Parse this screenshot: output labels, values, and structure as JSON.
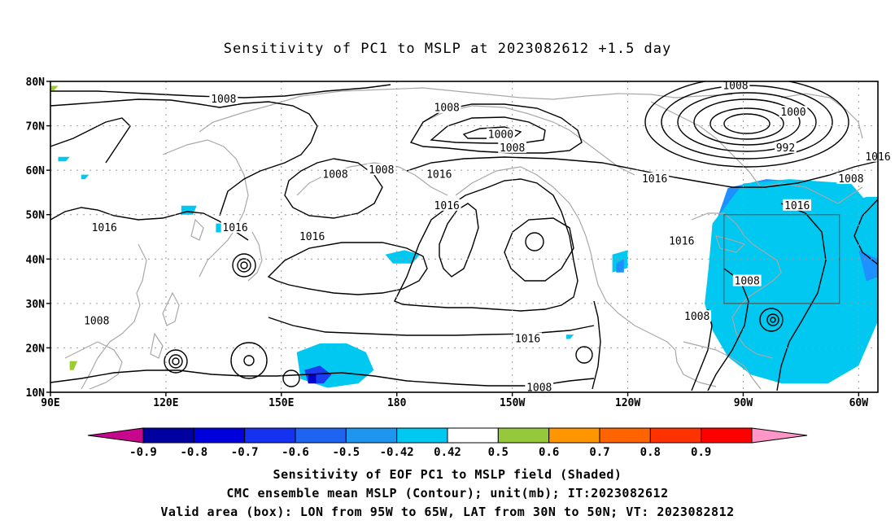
{
  "title": "Sensitivity of PC1 to MSLP at 2023082612 +1.5 day",
  "map": {
    "lat_labels": [
      "80N",
      "70N",
      "60N",
      "50N",
      "40N",
      "30N",
      "20N",
      "10N"
    ],
    "lon_labels": [
      "90E",
      "120E",
      "150E",
      "180",
      "150W",
      "120W",
      "90W",
      "60W"
    ],
    "lat_range": [
      10,
      80
    ],
    "lon_range_east": [
      90,
      305
    ],
    "valid_box": {
      "lon": [
        265,
        295
      ],
      "lat": [
        30,
        50
      ]
    }
  },
  "isobars": {
    "contour_color": "#000000",
    "coast_color": "#a8a8a8",
    "labels": [
      {
        "text": "1008",
        "lon": 135,
        "lat": 76
      },
      {
        "text": "1008",
        "lon": 193,
        "lat": 74
      },
      {
        "text": "1008",
        "lon": 268,
        "lat": 79
      },
      {
        "text": "1000",
        "lon": 283,
        "lat": 73
      },
      {
        "text": "1000",
        "lon": 207,
        "lat": 68
      },
      {
        "text": "992",
        "lon": 281,
        "lat": 65
      },
      {
        "text": "1008",
        "lon": 210,
        "lat": 65
      },
      {
        "text": "1016",
        "lon": 305,
        "lat": 63
      },
      {
        "text": "1008",
        "lon": 164,
        "lat": 59
      },
      {
        "text": "1008",
        "lon": 176,
        "lat": 60
      },
      {
        "text": "1016",
        "lon": 191,
        "lat": 59
      },
      {
        "text": "1016",
        "lon": 247,
        "lat": 58
      },
      {
        "text": "1008",
        "lon": 298,
        "lat": 58
      },
      {
        "text": "1016",
        "lon": 193,
        "lat": 52
      },
      {
        "text": "1016",
        "lon": 284,
        "lat": 52
      },
      {
        "text": "1016",
        "lon": 104,
        "lat": 47
      },
      {
        "text": "1016",
        "lon": 138,
        "lat": 47
      },
      {
        "text": "1016",
        "lon": 158,
        "lat": 45
      },
      {
        "text": "1016",
        "lon": 254,
        "lat": 44
      },
      {
        "text": "1008",
        "lon": 271,
        "lat": 35
      },
      {
        "text": "1008",
        "lon": 102,
        "lat": 26
      },
      {
        "text": "1008",
        "lon": 258,
        "lat": 27
      },
      {
        "text": "1016",
        "lon": 214,
        "lat": 22
      },
      {
        "text": "1008",
        "lon": 217,
        "lat": 11
      }
    ]
  },
  "shaded_regions": [
    {
      "level": -0.6,
      "color": "#1c3cf0",
      "points": [
        [
          266,
          50
        ],
        [
          272,
          54
        ],
        [
          279,
          55
        ],
        [
          288,
          53
        ],
        [
          294,
          51
        ],
        [
          298,
          48
        ],
        [
          301,
          44
        ],
        [
          301,
          40
        ],
        [
          300,
          35
        ],
        [
          296,
          30
        ],
        [
          293,
          25
        ],
        [
          290,
          22
        ],
        [
          288,
          20
        ],
        [
          284,
          20
        ],
        [
          280,
          22
        ],
        [
          274,
          24
        ],
        [
          269,
          26
        ],
        [
          266,
          29
        ],
        [
          265,
          34
        ],
        [
          264,
          40
        ],
        [
          265,
          46
        ]
      ]
    },
    {
      "level": -0.5,
      "color": "#1e90ff",
      "points": [
        [
          262,
          46
        ],
        [
          266,
          56
        ],
        [
          276,
          58
        ],
        [
          292,
          57
        ],
        [
          298,
          51
        ],
        [
          305,
          45
        ],
        [
          304,
          36
        ],
        [
          303,
          30
        ],
        [
          301,
          24
        ],
        [
          296,
          16
        ],
        [
          288,
          13
        ],
        [
          278,
          14
        ],
        [
          270,
          18
        ],
        [
          266,
          22
        ],
        [
          262,
          30
        ],
        [
          261,
          38
        ]
      ]
    },
    {
      "level": -0.42,
      "color": "#00c8f0",
      "points": [
        [
          261,
          38
        ],
        [
          262,
          48
        ],
        [
          270,
          57
        ],
        [
          282,
          58
        ],
        [
          298,
          57
        ],
        [
          303,
          52
        ],
        [
          305,
          48
        ],
        [
          305,
          26
        ],
        [
          300,
          16
        ],
        [
          292,
          12
        ],
        [
          280,
          12
        ],
        [
          272,
          14
        ],
        [
          266,
          18
        ],
        [
          262,
          24
        ],
        [
          260,
          30
        ]
      ]
    },
    {
      "level": -0.5,
      "color": "#1e90ff",
      "points": [
        [
          300,
          42
        ],
        [
          303,
          47
        ],
        [
          305,
          50
        ],
        [
          305,
          36
        ],
        [
          302,
          35
        ]
      ]
    },
    {
      "level": -0.42,
      "color": "#00c8f0",
      "points": [
        [
          296,
          52
        ],
        [
          302,
          54
        ],
        [
          305,
          54
        ],
        [
          305,
          40
        ],
        [
          300,
          42
        ]
      ]
    },
    {
      "level": -0.42,
      "color": "#00c8f0",
      "points": [
        [
          154,
          19
        ],
        [
          160,
          21
        ],
        [
          167,
          21
        ],
        [
          172,
          19
        ],
        [
          174,
          15
        ],
        [
          170,
          12
        ],
        [
          162,
          11
        ],
        [
          155,
          13
        ]
      ]
    },
    {
      "level": -0.6,
      "color": "#1c3cf0",
      "points": [
        [
          156,
          15
        ],
        [
          160,
          16
        ],
        [
          163,
          14
        ],
        [
          161,
          12
        ],
        [
          157,
          12
        ]
      ]
    },
    {
      "level": -0.8,
      "color": "#0000c8",
      "points": [
        [
          157,
          14
        ],
        [
          159,
          14
        ],
        [
          159,
          12
        ],
        [
          157,
          12
        ]
      ]
    },
    {
      "level": -0.42,
      "color": "#00c8f0",
      "points": [
        [
          177,
          41
        ],
        [
          182,
          42
        ],
        [
          186,
          41
        ],
        [
          184,
          39
        ],
        [
          179,
          39
        ]
      ]
    },
    {
      "level": -0.42,
      "color": "#00c8f0",
      "points": [
        [
          236,
          41
        ],
        [
          240,
          42
        ],
        [
          240,
          38
        ],
        [
          236,
          37
        ]
      ]
    },
    {
      "level": -0.5,
      "color": "#1e90ff",
      "points": [
        [
          237,
          39
        ],
        [
          239,
          40
        ],
        [
          239,
          37
        ],
        [
          237,
          37
        ]
      ]
    },
    {
      "level": -0.42,
      "color": "#00c8f0",
      "points": [
        [
          124,
          52
        ],
        [
          128,
          52
        ],
        [
          127,
          50
        ],
        [
          124,
          50
        ]
      ]
    },
    {
      "level": -0.42,
      "color": "#00c8f0",
      "points": [
        [
          133,
          48
        ],
        [
          137,
          48
        ],
        [
          136,
          46
        ],
        [
          133,
          46
        ]
      ]
    },
    {
      "level": -0.42,
      "color": "#00c8f0",
      "points": [
        [
          92,
          63
        ],
        [
          95,
          63
        ],
        [
          94,
          62
        ],
        [
          92,
          62
        ]
      ]
    },
    {
      "level": -0.42,
      "color": "#00c8f0",
      "points": [
        [
          98,
          59
        ],
        [
          100,
          59
        ],
        [
          99,
          58
        ],
        [
          98,
          58
        ]
      ]
    },
    {
      "level": 0.5,
      "color": "#9acd32",
      "points": [
        [
          95,
          17
        ],
        [
          97,
          17
        ],
        [
          96,
          15
        ],
        [
          95,
          15
        ]
      ]
    },
    {
      "level": 0.5,
      "color": "#9acd32",
      "points": [
        [
          90,
          79
        ],
        [
          92,
          79
        ],
        [
          91,
          78
        ],
        [
          90,
          78
        ]
      ]
    },
    {
      "level": -0.42,
      "color": "#00c8f0",
      "points": [
        [
          224,
          23
        ],
        [
          226,
          23
        ],
        [
          225,
          22
        ],
        [
          224,
          22
        ]
      ]
    }
  ],
  "colorbar": {
    "tick_labels": [
      "-0.9",
      "-0.8",
      "-0.7",
      "-0.6",
      "-0.5",
      "-0.42",
      "0.42",
      "0.5",
      "0.6",
      "0.7",
      "0.8",
      "0.9"
    ],
    "colors": [
      "#c8088c",
      "#0000a0",
      "#0000dc",
      "#1432f0",
      "#1e64f0",
      "#1e96f0",
      "#00c8f0",
      "#ffffff",
      "#96c83c",
      "#ff9600",
      "#ff6400",
      "#ff3200",
      "#ff0000",
      "#ff96c8"
    ]
  },
  "captions": [
    "Sensitivity of EOF PC1 to MSLP field (Shaded)",
    "CMC ensemble mean MSLP (Contour); unit(mb); IT:2023082612",
    "Valid area (box): LON from 95W to 65W, LAT from 30N to 50N; VT: 2023082812"
  ]
}
